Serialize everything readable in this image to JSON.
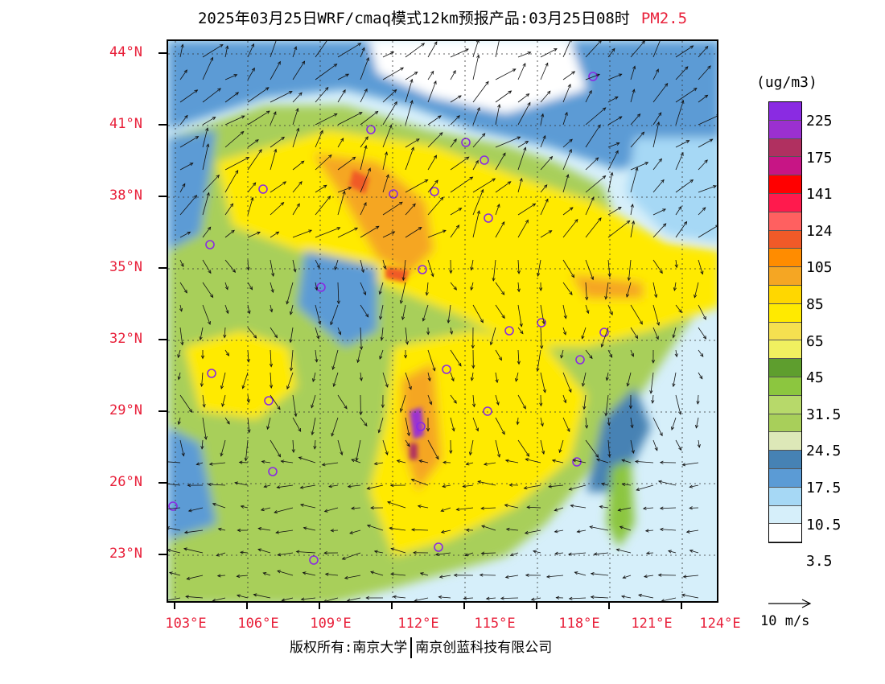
{
  "header": {
    "title": "2025年03月25日WRF/cmaq模式12km预报产品:03月25日08时",
    "product": "PM2.5"
  },
  "map": {
    "lat_labels": [
      "44°N",
      "41°N",
      "38°N",
      "35°N",
      "32°N",
      "29°N",
      "26°N",
      "23°N"
    ],
    "lon_labels": [
      "103°E",
      "106°E",
      "109°E",
      "112°E",
      "115°E",
      "118°E",
      "121°E",
      "124°E"
    ],
    "extent": {
      "lon_min": 102.8,
      "lon_max": 124.0,
      "lat_min": 21.0,
      "lat_max": 44.3
    }
  },
  "legend": {
    "unit": "(ug/m3)",
    "colors": [
      "#8a2be2",
      "#9b30d0",
      "#b03060",
      "#c71585",
      "#ff0000",
      "#ff1a4d",
      "#ff6060",
      "#f05a28",
      "#ff8c00",
      "#f5a623",
      "#ffd700",
      "#ffea00",
      "#f5e050",
      "#f0f060",
      "#5e9e2e",
      "#8cc63f",
      "#b7d96a",
      "#a8cf5a",
      "#dde8b8",
      "#4682b4",
      "#5b9bd5",
      "#a6d8f5",
      "#d6effa",
      "#ffffff"
    ],
    "labels": [
      "225",
      "175",
      "141",
      "124",
      "105",
      "85",
      "65",
      "45",
      "31.5",
      "24.5",
      "17.5",
      "10.5",
      "3.5"
    ]
  },
  "wind": {
    "reference": "10 m/s"
  },
  "footer": {
    "left": "版权所有:南京大学",
    "right": "南京创蓝科技有限公司"
  }
}
